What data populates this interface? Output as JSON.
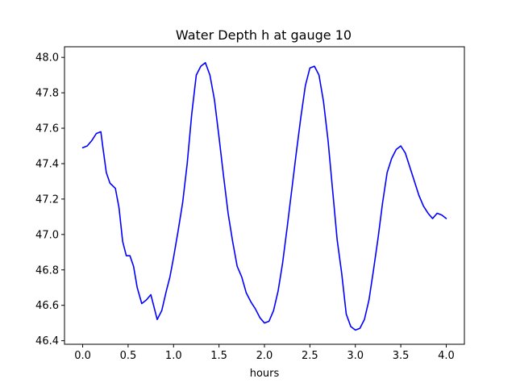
{
  "chart_data": {
    "type": "line",
    "title": "Water Depth h at gauge 10",
    "xlabel": "hours",
    "ylabel": "",
    "xlim": [
      -0.2,
      4.2
    ],
    "ylim": [
      46.38,
      48.06
    ],
    "xticks": [
      0.0,
      0.5,
      1.0,
      1.5,
      2.0,
      2.5,
      3.0,
      3.5,
      4.0
    ],
    "xtick_labels": [
      "0.0",
      "0.5",
      "1.0",
      "1.5",
      "2.0",
      "2.5",
      "3.0",
      "3.5",
      "4.0"
    ],
    "yticks": [
      46.4,
      46.6,
      46.8,
      47.0,
      47.2,
      47.4,
      47.6,
      47.8,
      48.0
    ],
    "ytick_labels": [
      "46.4",
      "46.6",
      "46.8",
      "47.0",
      "47.2",
      "47.4",
      "47.6",
      "47.8",
      "48.0"
    ],
    "grid": false,
    "legend": "none",
    "series": [
      {
        "color": "#0000ff",
        "x": [
          0.0,
          0.05,
          0.1,
          0.15,
          0.2,
          0.22,
          0.26,
          0.3,
          0.36,
          0.4,
          0.44,
          0.48,
          0.52,
          0.56,
          0.6,
          0.65,
          0.7,
          0.75,
          0.79,
          0.82,
          0.87,
          0.92,
          0.96,
          1.0,
          1.05,
          1.1,
          1.15,
          1.2,
          1.25,
          1.3,
          1.35,
          1.4,
          1.45,
          1.5,
          1.55,
          1.6,
          1.65,
          1.7,
          1.75,
          1.8,
          1.85,
          1.9,
          1.95,
          2.0,
          2.05,
          2.1,
          2.15,
          2.2,
          2.25,
          2.3,
          2.35,
          2.4,
          2.45,
          2.5,
          2.55,
          2.6,
          2.65,
          2.7,
          2.75,
          2.8,
          2.85,
          2.9,
          2.95,
          3.0,
          3.05,
          3.1,
          3.15,
          3.2,
          3.25,
          3.3,
          3.35,
          3.4,
          3.45,
          3.5,
          3.55,
          3.6,
          3.65,
          3.7,
          3.75,
          3.8,
          3.85,
          3.9,
          3.95,
          4.0
        ],
        "y": [
          47.49,
          47.5,
          47.53,
          47.57,
          47.58,
          47.5,
          47.35,
          47.29,
          47.26,
          47.15,
          46.96,
          46.88,
          46.88,
          46.82,
          46.7,
          46.61,
          46.63,
          46.66,
          46.58,
          46.52,
          46.57,
          46.68,
          46.76,
          46.87,
          47.02,
          47.18,
          47.4,
          47.68,
          47.9,
          47.95,
          47.97,
          47.9,
          47.76,
          47.55,
          47.33,
          47.12,
          46.96,
          46.82,
          46.76,
          46.67,
          46.62,
          46.58,
          46.53,
          46.5,
          46.51,
          46.57,
          46.68,
          46.84,
          47.04,
          47.25,
          47.46,
          47.66,
          47.84,
          47.94,
          47.95,
          47.9,
          47.75,
          47.53,
          47.25,
          46.97,
          46.78,
          46.55,
          46.48,
          46.46,
          46.47,
          46.52,
          46.63,
          46.8,
          46.98,
          47.18,
          47.35,
          47.43,
          47.48,
          47.5,
          47.46,
          47.38,
          47.3,
          47.22,
          47.16,
          47.12,
          47.09,
          47.12,
          47.11,
          47.09
        ]
      }
    ]
  }
}
